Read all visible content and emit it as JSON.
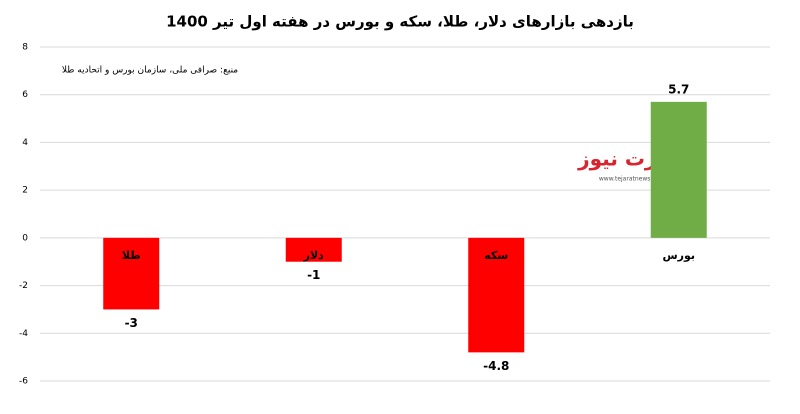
{
  "chart_data": {
    "type": "bar",
    "title": "بازدهی بازارهای دلار، طلا، سکه و بورس در هفته اول تیر 1400",
    "source": "منبع: صرافی ملی، سازمان بورس و اتحادیه طلا",
    "watermark": {
      "text": "تجارت نیوز",
      "url": "www.tejaratnews.com"
    },
    "categories": [
      "طلا",
      "دلار",
      "سکه",
      "بورس"
    ],
    "values": [
      -3,
      -1,
      -4.8,
      5.7
    ],
    "colors": [
      "#ff0000",
      "#ff0000",
      "#ff0000",
      "#70ad47"
    ],
    "ylim": [
      -6,
      8
    ],
    "yticks": [
      -6,
      -4,
      -2,
      0,
      2,
      4,
      6,
      8
    ],
    "grid": true
  }
}
